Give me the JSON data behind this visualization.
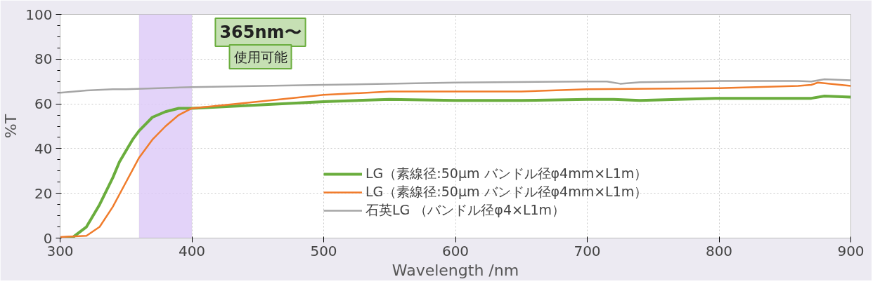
{
  "chart_data": {
    "type": "line",
    "xlabel": "Wavelength /nm",
    "ylabel": "%T",
    "xlim": [
      300,
      900
    ],
    "ylim": [
      0,
      100
    ],
    "xticks": [
      300,
      400,
      500,
      600,
      700,
      800,
      900
    ],
    "yticks": [
      0,
      20,
      40,
      60,
      80,
      100
    ],
    "grid": true,
    "legend": "right",
    "line_style": "solid",
    "marker": "none",
    "series": [
      {
        "name": "LG（素線径:50μm バンドル径φ4mm×L1m）",
        "color": "#6aad3d",
        "x": [
          300,
          310,
          320,
          330,
          340,
          345,
          350,
          355,
          360,
          365,
          370,
          380,
          390,
          400,
          450,
          500,
          550,
          600,
          650,
          700,
          720,
          740,
          800,
          850,
          870,
          880,
          900
        ],
        "values": [
          0,
          0.5,
          5,
          15,
          27,
          34,
          39,
          44,
          48,
          51,
          54,
          56.5,
          58,
          58,
          59.5,
          61,
          62,
          61.5,
          61.5,
          62,
          62,
          61.5,
          62.5,
          62.5,
          62.5,
          63.5,
          63
        ]
      },
      {
        "name": "LG（素線径:50μm バンドル径φ4mm×L1m）",
        "color": "#f07c2c",
        "x": [
          300,
          320,
          330,
          340,
          350,
          360,
          365,
          370,
          380,
          390,
          400,
          450,
          500,
          550,
          600,
          650,
          700,
          800,
          860,
          870,
          875,
          900
        ],
        "values": [
          0.5,
          1,
          5,
          14,
          25,
          36,
          40,
          44,
          50,
          55,
          58,
          61,
          64,
          65.5,
          65.5,
          65.5,
          66.5,
          67,
          68,
          68.5,
          69.5,
          68
        ]
      },
      {
        "name": "石英LG （バンドル径φ4×L1m）",
        "color": "#a6a6a6",
        "x": [
          300,
          320,
          340,
          350,
          400,
          500,
          600,
          700,
          715,
          725,
          740,
          800,
          860,
          870,
          880,
          900
        ],
        "values": [
          65,
          66,
          66.5,
          66.5,
          67.5,
          68.5,
          69.5,
          70,
          70,
          69,
          69.7,
          70.2,
          70.2,
          70,
          71,
          70.5
        ]
      }
    ],
    "bands": [
      {
        "axis": "x",
        "from": 360,
        "to": 400,
        "color": "#dcc8f8"
      }
    ],
    "annotations": [
      "365nm〜",
      "使用可能"
    ]
  }
}
